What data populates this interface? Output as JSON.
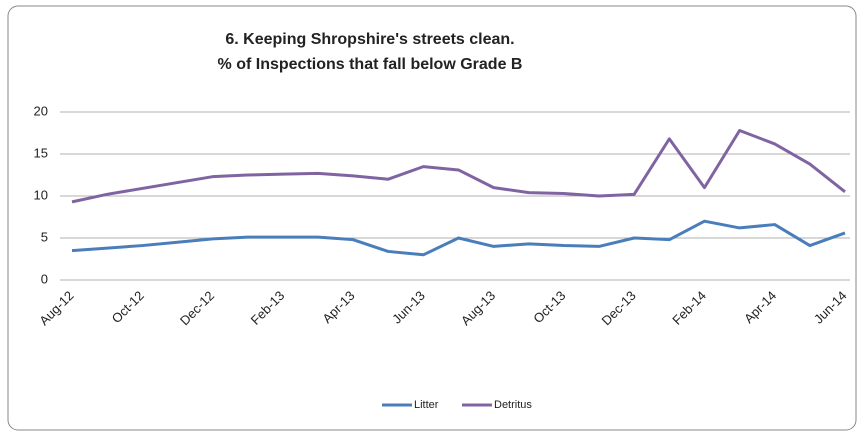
{
  "chart_data": {
    "type": "line",
    "title": [
      "6. Keeping Shropshire's streets clean.",
      "% of Inspections that fall below Grade B"
    ],
    "categories": [
      "Aug-12",
      null,
      "Oct-12",
      null,
      "Dec-12",
      null,
      "Feb-13",
      null,
      "Apr-13",
      null,
      "Jun-13",
      null,
      "Aug-13",
      null,
      "Oct-13",
      null,
      "Dec-13",
      null,
      "Feb-14",
      null,
      "Apr-14",
      null,
      "Jun-14"
    ],
    "series": [
      {
        "name": "Litter",
        "color": "#4a7ebb",
        "values": [
          3.5,
          3.8,
          4.1,
          4.5,
          4.9,
          5.1,
          5.1,
          5.1,
          4.8,
          3.4,
          3.0,
          5.0,
          4.0,
          4.3,
          4.1,
          4.0,
          5.0,
          4.8,
          7.0,
          6.2,
          6.6,
          4.1,
          5.6
        ]
      },
      {
        "name": "Detritus",
        "color": "#8064a2",
        "values": [
          9.3,
          10.2,
          10.9,
          11.6,
          12.3,
          12.5,
          12.6,
          12.7,
          12.4,
          12.0,
          13.5,
          13.1,
          11.0,
          10.4,
          10.3,
          10.0,
          10.2,
          16.8,
          11.0,
          17.8,
          16.2,
          13.8,
          10.5
        ]
      }
    ],
    "ylim": [
      0,
      20
    ],
    "yticks": [
      0,
      5,
      10,
      15,
      20
    ],
    "grid": true,
    "legend": "bottom"
  }
}
